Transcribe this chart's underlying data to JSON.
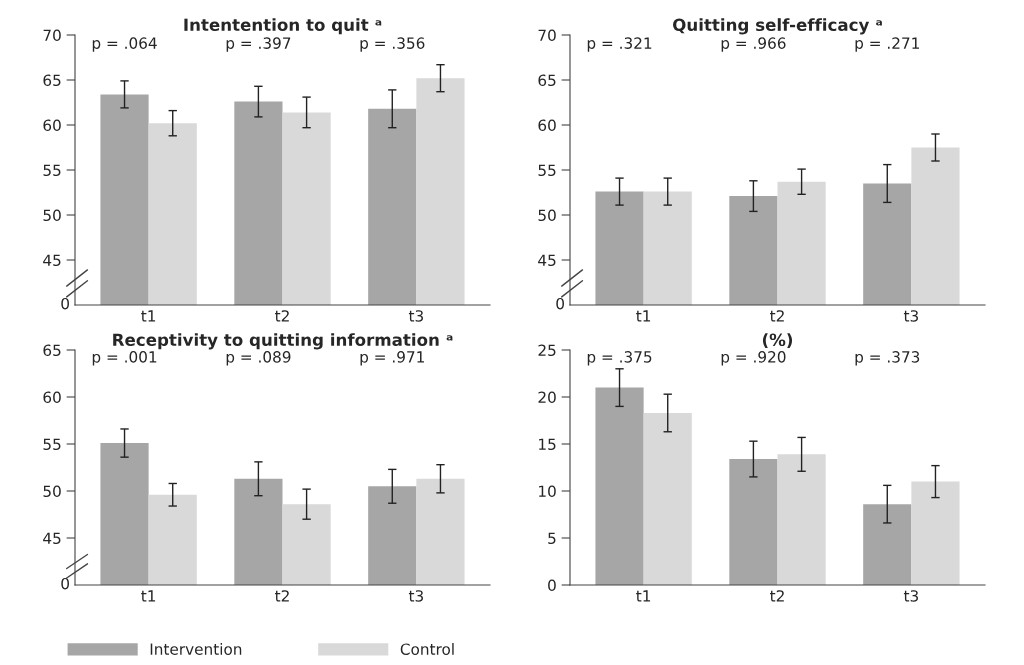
{
  "chart_data": [
    {
      "type": "bar",
      "title": "Intentention to quit ᵃ",
      "categories": [
        "t1",
        "t2",
        "t3"
      ],
      "series": [
        {
          "color": "#a6a6a6",
          "values": [
            63.4,
            62.6,
            61.8
          ],
          "errors": [
            1.5,
            1.7,
            2.1
          ]
        },
        {
          "color": "#d9d9d9",
          "values": [
            60.2,
            61.4,
            65.2
          ],
          "errors": [
            1.4,
            1.7,
            1.5
          ]
        }
      ],
      "ylim": [
        40,
        70
      ],
      "yticks": [
        45,
        50,
        55,
        60,
        65,
        70
      ],
      "grid": false,
      "annotations": [
        "0",
        "p = .064",
        "p = .397",
        "p = .356"
      ]
    },
    {
      "type": "bar",
      "title": "Quitting self-efficacy ᵃ",
      "categories": [
        "t1",
        "t2",
        "t3"
      ],
      "series": [
        {
          "color": "#a6a6a6",
          "values": [
            52.6,
            52.1,
            53.5
          ],
          "errors": [
            1.5,
            1.7,
            2.1
          ]
        },
        {
          "color": "#d9d9d9",
          "values": [
            52.6,
            53.7,
            57.5
          ],
          "errors": [
            1.5,
            1.4,
            1.5
          ]
        }
      ],
      "ylim": [
        40,
        70
      ],
      "yticks": [
        45,
        50,
        55,
        60,
        65,
        70
      ],
      "grid": false,
      "annotations": [
        "0",
        "p = .321",
        "p = .966",
        "p = .271"
      ]
    },
    {
      "type": "bar",
      "title": "Receptivity to quitting information ᵃ",
      "categories": [
        "t1",
        "t2",
        "t3"
      ],
      "series": [
        {
          "name": "Intervention",
          "color": "#a6a6a6",
          "values": [
            55.1,
            51.3,
            50.5
          ],
          "errors": [
            1.5,
            1.8,
            1.8
          ]
        },
        {
          "name": "Control",
          "color": "#d9d9d9",
          "values": [
            49.6,
            48.6,
            51.3
          ],
          "errors": [
            1.2,
            1.6,
            1.5
          ]
        }
      ],
      "ylim": [
        40,
        65
      ],
      "yticks": [
        45,
        50,
        55,
        60,
        65
      ],
      "grid": false,
      "legend": "bottom",
      "annotations": [
        "0",
        "p = .001",
        "p = .089",
        "p = .971"
      ]
    },
    {
      "type": "bar",
      "title": "(%)",
      "categories": [
        "t1",
        "t2",
        "t3"
      ],
      "series": [
        {
          "color": "#a6a6a6",
          "values": [
            21.0,
            13.4,
            8.6
          ],
          "errors": [
            2.0,
            1.9,
            2.0
          ]
        },
        {
          "color": "#d9d9d9",
          "values": [
            18.3,
            13.9,
            11.0
          ],
          "errors": [
            2.0,
            1.8,
            1.7
          ]
        }
      ],
      "ylim": [
        0,
        25
      ],
      "yticks": [
        0,
        5,
        10,
        15,
        20,
        25
      ],
      "grid": false,
      "annotations": [
        "p = .375",
        "p = .920",
        "p = .373"
      ]
    }
  ]
}
